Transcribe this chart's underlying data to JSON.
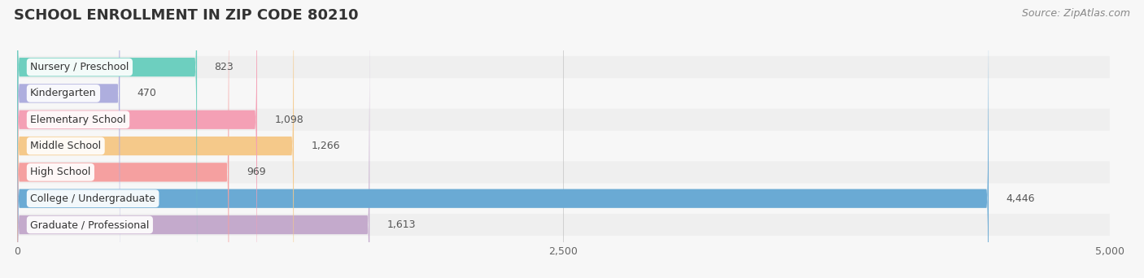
{
  "title": "SCHOOL ENROLLMENT IN ZIP CODE 80210",
  "source": "Source: ZipAtlas.com",
  "categories": [
    "Nursery / Preschool",
    "Kindergarten",
    "Elementary School",
    "Middle School",
    "High School",
    "College / Undergraduate",
    "Graduate / Professional"
  ],
  "values": [
    823,
    470,
    1098,
    1266,
    969,
    4446,
    1613
  ],
  "value_labels": [
    "823",
    "470",
    "1,098",
    "1,266",
    "969",
    "4,446",
    "1,613"
  ],
  "bar_colors": [
    "#6DCFBF",
    "#AEAEDE",
    "#F4A0B5",
    "#F5C98A",
    "#F5A0A0",
    "#6AAAD4",
    "#C4AACC"
  ],
  "background_color": "#f7f7f7",
  "xlim": [
    0,
    5000
  ],
  "xticks": [
    0,
    2500,
    5000
  ],
  "title_fontsize": 13,
  "label_fontsize": 9,
  "value_fontsize": 9,
  "source_fontsize": 9
}
